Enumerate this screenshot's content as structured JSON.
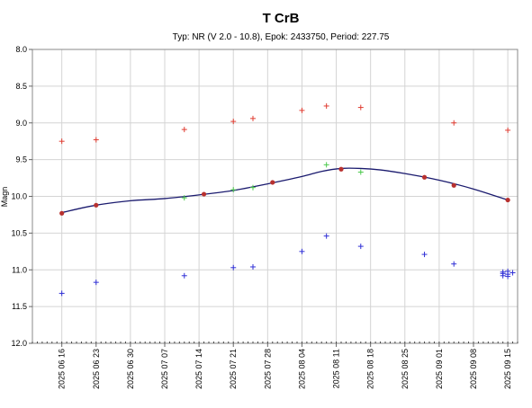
{
  "chart_data": {
    "type": "scatter",
    "title": "T CrB",
    "subtitle": "Typ: NR (V 2.0 - 10.8), Epok: 2433750, Period: 227.75",
    "xlabel": "",
    "ylabel": "Magn",
    "y_inverted": true,
    "ylim": [
      8.0,
      12.0
    ],
    "y_ticks": [
      "8.0",
      "8.5",
      "9.0",
      "9.5",
      "10.0",
      "10.5",
      "11.0",
      "11.5",
      "12.0"
    ],
    "xlim": [
      "2025-06-10",
      "2025-09-17"
    ],
    "x_ticks": [
      {
        "date": "2025-06-16",
        "label": "2025 06 16"
      },
      {
        "date": "2025-06-23",
        "label": "2025 06 23"
      },
      {
        "date": "2025-06-30",
        "label": "2025 06 30"
      },
      {
        "date": "2025-07-07",
        "label": "2025 07 07"
      },
      {
        "date": "2025-07-14",
        "label": "2025 07 14"
      },
      {
        "date": "2025-07-21",
        "label": "2025 07 21"
      },
      {
        "date": "2025-07-28",
        "label": "2025 07 28"
      },
      {
        "date": "2025-08-04",
        "label": "2025 08 04"
      },
      {
        "date": "2025-08-11",
        "label": "2025 08 11"
      },
      {
        "date": "2025-08-18",
        "label": "2025 08 18"
      },
      {
        "date": "2025-08-25",
        "label": "2025 08 25"
      },
      {
        "date": "2025-09-01",
        "label": "2025 09 01"
      },
      {
        "date": "2025-09-08",
        "label": "2025 09 08"
      },
      {
        "date": "2025-09-15",
        "label": "2025 09 15"
      }
    ],
    "grid": true,
    "series": [
      {
        "color": "#e03c31",
        "marker": "plus",
        "points": [
          {
            "x": "2025-06-16",
            "y": 9.25
          },
          {
            "x": "2025-06-23",
            "y": 9.23
          },
          {
            "x": "2025-07-11",
            "y": 9.09
          },
          {
            "x": "2025-07-21",
            "y": 8.98
          },
          {
            "x": "2025-07-25",
            "y": 8.94
          },
          {
            "x": "2025-08-04",
            "y": 8.83
          },
          {
            "x": "2025-08-09",
            "y": 8.77
          },
          {
            "x": "2025-08-16",
            "y": 8.79
          },
          {
            "x": "2025-09-04",
            "y": 9.0
          },
          {
            "x": "2025-09-15",
            "y": 9.1
          }
        ]
      },
      {
        "color": "#2f2fd6",
        "marker": "plus",
        "points": [
          {
            "x": "2025-06-16",
            "y": 11.32
          },
          {
            "x": "2025-06-23",
            "y": 11.17
          },
          {
            "x": "2025-07-11",
            "y": 11.08
          },
          {
            "x": "2025-07-21",
            "y": 10.97
          },
          {
            "x": "2025-07-25",
            "y": 10.96
          },
          {
            "x": "2025-08-04",
            "y": 10.75
          },
          {
            "x": "2025-08-09",
            "y": 10.54
          },
          {
            "x": "2025-08-16",
            "y": 10.68
          },
          {
            "x": "2025-08-29",
            "y": 10.79
          },
          {
            "x": "2025-09-04",
            "y": 10.92
          },
          {
            "x": "2025-09-14",
            "y": 11.05
          },
          {
            "x": "2025-09-14",
            "y": 11.08
          },
          {
            "x": "2025-09-14",
            "y": 11.03
          },
          {
            "x": "2025-09-15",
            "y": 11.06
          },
          {
            "x": "2025-09-15",
            "y": 11.02
          },
          {
            "x": "2025-09-15",
            "y": 11.09
          },
          {
            "x": "2025-09-16",
            "y": 11.04
          }
        ]
      },
      {
        "color": "#4cc94c",
        "marker": "plus",
        "points": [
          {
            "x": "2025-07-11",
            "y": 10.02
          },
          {
            "x": "2025-07-21",
            "y": 9.91
          },
          {
            "x": "2025-07-25",
            "y": 9.88
          },
          {
            "x": "2025-08-09",
            "y": 9.57
          },
          {
            "x": "2025-08-16",
            "y": 9.67
          }
        ]
      },
      {
        "color": "#b8312f",
        "marker": "dot",
        "points": [
          {
            "x": "2025-06-16",
            "y": 10.23
          },
          {
            "x": "2025-06-23",
            "y": 10.12
          },
          {
            "x": "2025-07-15",
            "y": 9.97
          },
          {
            "x": "2025-07-29",
            "y": 9.81
          },
          {
            "x": "2025-08-12",
            "y": 9.63
          },
          {
            "x": "2025-08-29",
            "y": 9.74
          },
          {
            "x": "2025-09-04",
            "y": 9.85
          },
          {
            "x": "2025-09-15",
            "y": 10.05
          }
        ]
      }
    ],
    "fit_line": {
      "color": "#1a1a6e",
      "points": [
        {
          "x": "2025-06-16",
          "y": 10.22
        },
        {
          "x": "2025-06-23",
          "y": 10.12
        },
        {
          "x": "2025-06-30",
          "y": 10.06
        },
        {
          "x": "2025-07-07",
          "y": 10.03
        },
        {
          "x": "2025-07-14",
          "y": 9.98
        },
        {
          "x": "2025-07-21",
          "y": 9.92
        },
        {
          "x": "2025-07-28",
          "y": 9.83
        },
        {
          "x": "2025-08-04",
          "y": 9.73
        },
        {
          "x": "2025-08-08",
          "y": 9.66
        },
        {
          "x": "2025-08-12",
          "y": 9.62
        },
        {
          "x": "2025-08-16",
          "y": 9.62
        },
        {
          "x": "2025-08-20",
          "y": 9.64
        },
        {
          "x": "2025-08-25",
          "y": 9.69
        },
        {
          "x": "2025-09-01",
          "y": 9.78
        },
        {
          "x": "2025-09-08",
          "y": 9.9
        },
        {
          "x": "2025-09-15",
          "y": 10.05
        }
      ]
    }
  }
}
